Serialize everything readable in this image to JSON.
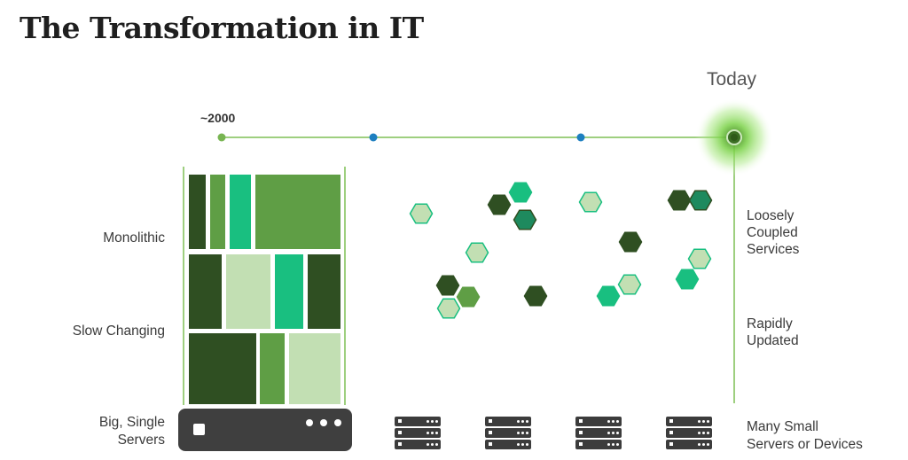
{
  "title": "The Transformation in IT",
  "timeline": {
    "start_label": "~2000",
    "end_label": "Today"
  },
  "left_labels": {
    "monolithic": "Monolithic",
    "slow_changing": "Slow Changing",
    "big_servers_line1": "Big, Single",
    "big_servers_line2": "Servers"
  },
  "right_labels": {
    "loosely_line1": "Loosely",
    "loosely_line2": "Coupled",
    "loosely_line3": "Services",
    "rapidly_line1": "Rapidly",
    "rapidly_line2": "Updated",
    "many_line1": "Many Small",
    "many_line2": "Servers or Devices"
  },
  "colors": {
    "dark_green": "#2f4f22",
    "mid_green": "#5f9e45",
    "teal": "#19bf80",
    "pale_green": "#c2dfb3",
    "timeline_green": "#78b552",
    "timeline_blue": "#1d7fc0",
    "server_gray": "#3f3f3f"
  },
  "icons": {
    "big_server": "server-icon",
    "small_server": "server-rack-icon"
  }
}
